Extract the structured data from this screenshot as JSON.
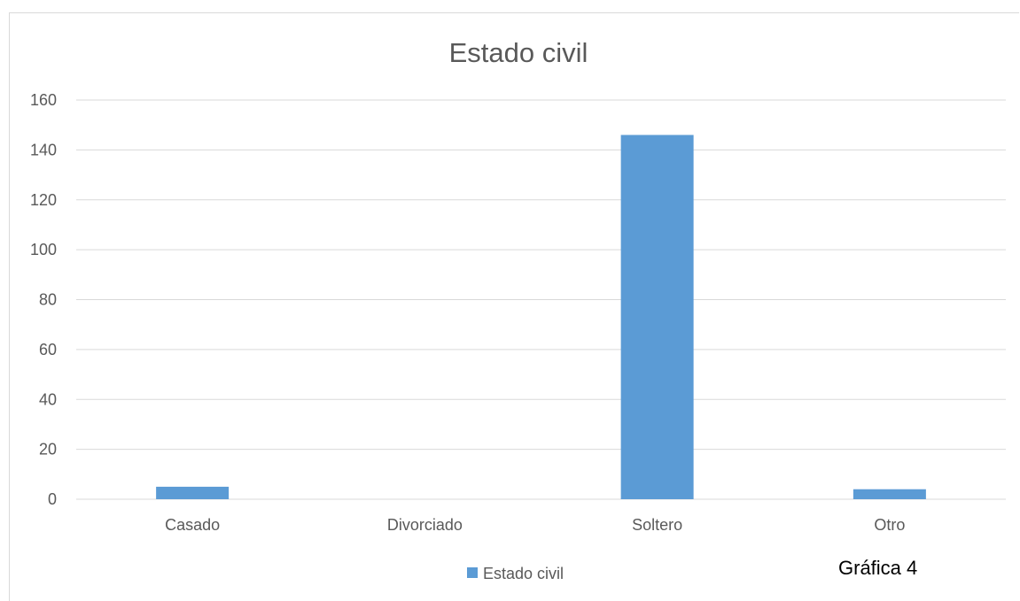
{
  "chart_data": {
    "type": "bar",
    "title": "Estado civil",
    "categories": [
      "Casado",
      "Divorciado",
      "Soltero",
      "Otro"
    ],
    "series": [
      {
        "name": "Estado civil",
        "values": [
          5,
          0,
          146,
          4
        ],
        "color": "#5b9bd5"
      }
    ],
    "ylim": [
      0,
      160
    ],
    "yticks": [
      0,
      20,
      40,
      60,
      80,
      100,
      120,
      140,
      160
    ],
    "grid": true,
    "legend": "bottom-center"
  },
  "caption": "Gráfica 4",
  "colors": {
    "gridline": "#d9d9d9",
    "text": "#595959"
  }
}
